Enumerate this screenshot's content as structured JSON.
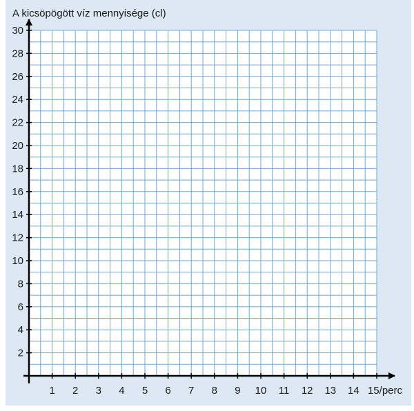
{
  "chart_data": {
    "type": "line",
    "title": "",
    "ylabel": "A kicsöpögött víz mennyisége (cl)",
    "xlabel": "perc",
    "x_unit_suffix": "/perc",
    "xlim": [
      0,
      15
    ],
    "ylim": [
      0,
      30
    ],
    "x_ticks": [
      1,
      2,
      3,
      4,
      5,
      6,
      7,
      8,
      9,
      10,
      11,
      12,
      13,
      14,
      15
    ],
    "y_ticks": [
      2,
      4,
      6,
      8,
      10,
      12,
      14,
      16,
      18,
      20,
      22,
      24,
      26,
      28,
      30
    ],
    "grid": true,
    "grid_minor_per_unit_x": 2,
    "grid_minor_per_unit_y": 1,
    "series": [],
    "colors": {
      "background": "#dce8f3",
      "plot_area": "#ffffff",
      "grid": "#6fa8dc",
      "axis": "#000000"
    }
  }
}
